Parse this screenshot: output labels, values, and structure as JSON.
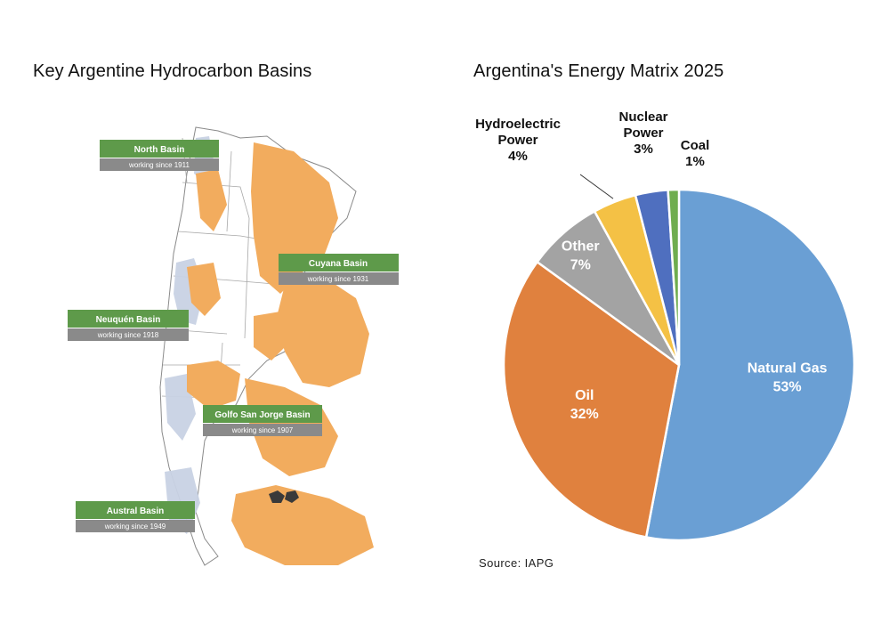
{
  "map": {
    "title": "Key Argentine Hydrocarbon Basins",
    "colors": {
      "basin_fill": "#f2ac5e",
      "label_green": "#5e9a4a",
      "label_gray": "#8a8a8a",
      "blue_area": "#c8d2e4"
    },
    "basins": [
      {
        "name": "North Basin",
        "since": "working since 1911"
      },
      {
        "name": "Cuyana Basin",
        "since": "working since 1931"
      },
      {
        "name": "Neuquén Basin",
        "since": "working since 1918"
      },
      {
        "name": "Golfo San Jorge Basin",
        "since": "working since 1907"
      },
      {
        "name": "Austral Basin",
        "since": "working since 1949"
      }
    ]
  },
  "chart_data": {
    "type": "pie",
    "title": "Argentina's Energy Matrix 2025",
    "source": "Source: IAPG",
    "slices": [
      {
        "label": "Natural Gas",
        "value": 53,
        "value_label": "53%",
        "color": "#6a9fd4",
        "label_color": "#ffffff"
      },
      {
        "label": "Oil",
        "value": 32,
        "value_label": "32%",
        "color": "#e0813e",
        "label_color": "#ffffff"
      },
      {
        "label": "Other",
        "value": 7,
        "value_label": "7%",
        "color": "#a3a3a3",
        "label_color": "#ffffff"
      },
      {
        "label": "Hydroelectric Power",
        "label_lines": [
          "Hydroelectric",
          "Power"
        ],
        "value": 4,
        "value_label": "4%",
        "color": "#f4c145",
        "label_color": "#111111"
      },
      {
        "label": "Nuclear Power",
        "label_lines": [
          "Nuclear",
          "Power"
        ],
        "value": 3,
        "value_label": "3%",
        "color": "#4f6fbf",
        "label_color": "#111111"
      },
      {
        "label": "Coal",
        "label_lines": [
          "Coal"
        ],
        "value": 1,
        "value_label": "1%",
        "color": "#6fad4f",
        "label_color": "#111111"
      }
    ]
  }
}
